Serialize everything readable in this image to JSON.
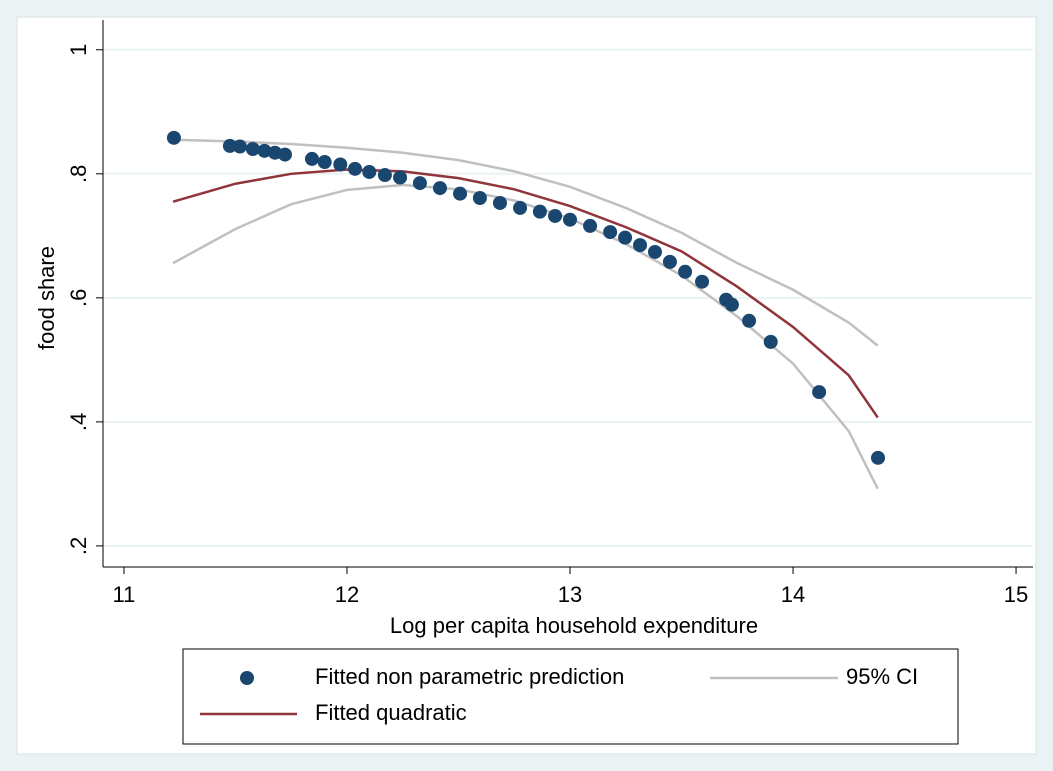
{
  "chart_data": {
    "type": "scatter",
    "xlabel": "Log per capita  household expenditure",
    "ylabel": "food share",
    "xlim": [
      10.906,
      15.076
    ],
    "ylim": [
      0.166,
      1.048
    ],
    "xticks": [
      11,
      12,
      13,
      14,
      15
    ],
    "yticks": [
      {
        "value": 0.2,
        "label": ".2"
      },
      {
        "value": 0.4,
        "label": ".4"
      },
      {
        "value": 0.6,
        "label": ".6"
      },
      {
        "value": 0.8,
        "label": ".8"
      },
      1
    ],
    "grid": true,
    "x": [
      11.22,
      11.5,
      11.75,
      12.0,
      12.25,
      12.5,
      12.75,
      13.0,
      13.25,
      13.5,
      13.75,
      14.0,
      14.25,
      14.38
    ],
    "series": [
      {
        "name": "Fitted non parametric prediction",
        "type": "scatter",
        "color": "#1a476f",
        "x": [
          11.224,
          11.475,
          11.52,
          11.578,
          11.63,
          11.677,
          11.722,
          11.843,
          11.9,
          11.97,
          12.036,
          12.1,
          12.17,
          12.238,
          12.327,
          12.417,
          12.507,
          12.596,
          12.686,
          12.776,
          12.865,
          12.933,
          13.0,
          13.09,
          13.18,
          13.247,
          13.314,
          13.381,
          13.448,
          13.516,
          13.592,
          13.7,
          13.726,
          13.803,
          13.9,
          14.117,
          14.381
        ],
        "values": [
          0.858,
          0.845,
          0.844,
          0.84,
          0.837,
          0.834,
          0.831,
          0.824,
          0.819,
          0.815,
          0.808,
          0.803,
          0.798,
          0.794,
          0.785,
          0.777,
          0.768,
          0.761,
          0.753,
          0.745,
          0.739,
          0.732,
          0.726,
          0.716,
          0.706,
          0.697,
          0.685,
          0.674,
          0.658,
          0.642,
          0.626,
          0.597,
          0.589,
          0.563,
          0.529,
          0.448,
          0.342
        ]
      },
      {
        "name": "95% CI",
        "type": "range",
        "color": "#c0c0c0",
        "values": [
          0.855,
          0.852,
          0.848,
          0.842,
          0.834,
          0.822,
          0.804,
          0.779,
          0.745,
          0.705,
          0.656,
          0.613,
          0.56,
          0.523
        ],
        "lower": [
          0.656,
          0.711,
          0.751,
          0.774,
          0.782,
          0.775,
          0.757,
          0.728,
          0.687,
          0.636,
          0.57,
          0.494,
          0.385,
          0.292
        ]
      },
      {
        "name": "Fitted quadratic",
        "type": "line",
        "color": "#90353b",
        "values": [
          0.755,
          0.784,
          0.8,
          0.807,
          0.804,
          0.793,
          0.775,
          0.748,
          0.714,
          0.675,
          0.618,
          0.553,
          0.475,
          0.407
        ]
      }
    ]
  }
}
